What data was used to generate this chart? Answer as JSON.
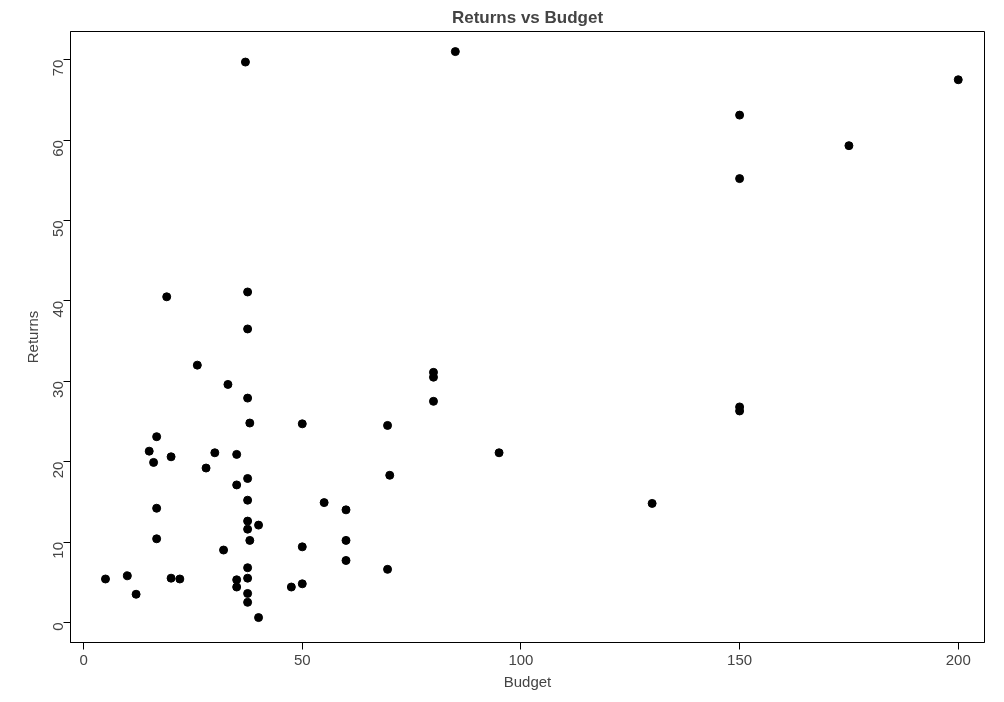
{
  "chart_data": {
    "type": "scatter",
    "title": "Returns vs Budget",
    "xlabel": "Budget",
    "ylabel": "Returns",
    "x": [
      19,
      37.5,
      37.5,
      26,
      33,
      37.5,
      38,
      16.7,
      15,
      16,
      20,
      30,
      35,
      28,
      37.5,
      35,
      37.5,
      16.7,
      37.5,
      37.5,
      40,
      38,
      16.7,
      32,
      37.5,
      5,
      10,
      20,
      22,
      12,
      35,
      37.5,
      35,
      37.5,
      37.5,
      40,
      80,
      80,
      80,
      50,
      69.5,
      95,
      70,
      55,
      60,
      60,
      50,
      60,
      69.5,
      47.5,
      50,
      37,
      85,
      150,
      150,
      150,
      150,
      175,
      200,
      130
    ],
    "values": [
      40.5,
      41.1,
      36.5,
      32,
      29.6,
      27.9,
      24.8,
      23.1,
      21.3,
      19.9,
      20.6,
      21.1,
      20.9,
      19.2,
      17.9,
      17.1,
      15.2,
      14.2,
      12.6,
      11.6,
      12.1,
      10.2,
      10.4,
      9,
      6.8,
      5.4,
      5.8,
      5.5,
      5.4,
      3.5,
      5.3,
      5.5,
      4.4,
      3.6,
      2.5,
      0.6,
      31.1,
      30.5,
      27.5,
      24.7,
      24.5,
      21.1,
      18.3,
      14.9,
      14,
      10.2,
      9.4,
      7.7,
      6.6,
      4.4,
      4.8,
      69.7,
      71,
      63.1,
      55.2,
      26.8,
      26.3,
      59.3,
      67.5,
      14.8
    ],
    "color": "#000000",
    "marker": "circle",
    "xlim": [
      -3,
      206
    ],
    "ylim": [
      -2.5,
      73.5
    ],
    "xticks": [
      0,
      50,
      100,
      150,
      200
    ],
    "yticks": [
      0,
      10,
      20,
      30,
      40,
      50,
      60,
      70
    ],
    "grid": false
  }
}
